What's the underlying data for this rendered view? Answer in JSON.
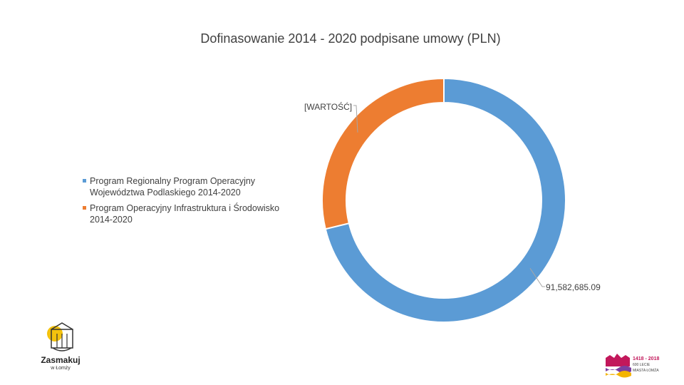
{
  "chart_data": {
    "type": "pie",
    "title": "Dofinasowanie 2014 - 2020 podpisane umowy (PLN)",
    "donut": true,
    "legend_position": "left",
    "series": [
      {
        "name": "Program Regionalny Program Operacyjny Województwa Podlaskiego 2014-2020",
        "value": 91582685.09,
        "label": "91,582,685.09",
        "color": "#5b9bd5"
      },
      {
        "name": "Program Operacyjny Infrastruktura i Środowisko 2014-2020",
        "value": 37000000,
        "label": "[WARTOŚĆ]",
        "color": "#ed7d31"
      }
    ],
    "legend": [
      "Program Regionalny Program Operacyjny Województwa Podlaskiego 2014-2020",
      "Program Operacyjny Infrastruktura i Środowisko 2014-2020"
    ]
  },
  "logos": {
    "left": {
      "name": "zasmakuj-logo",
      "text": "Zasmakuj",
      "subtext": "w Łomży"
    },
    "right": {
      "name": "lomza-anniversary-logo",
      "years": "1418 - 2018",
      "line1": "600 LECIE",
      "line2": "MIASTA ŁOMŻA"
    }
  }
}
